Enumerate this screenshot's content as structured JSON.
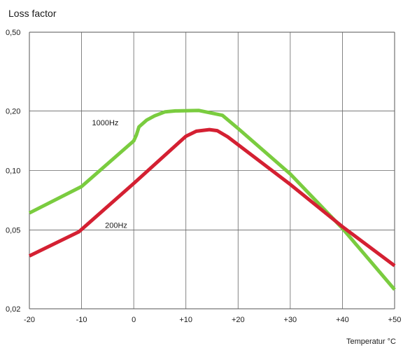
{
  "chart_data": {
    "type": "line",
    "title": "Loss factor",
    "xlabel": "Temperatur °C",
    "ylabel": "",
    "yscale": "log",
    "xlim": [
      -20,
      50
    ],
    "ylim": [
      0.02,
      0.5
    ],
    "grid": true,
    "x_ticks": [
      -20,
      -10,
      0,
      10,
      20,
      30,
      40,
      50
    ],
    "x_tick_labels": [
      "-20",
      "-10",
      "0",
      "+10",
      "+20",
      "+30",
      "+40",
      "+50"
    ],
    "y_ticks": [
      0.02,
      0.05,
      0.1,
      0.2,
      0.5
    ],
    "y_tick_labels": [
      "0,02",
      "0,05",
      "0,10",
      "0,20",
      "0,50"
    ],
    "series": [
      {
        "name": "1000Hz",
        "color": "#7acc3f",
        "label_at": {
          "x": -8,
          "y": 0.175
        },
        "points": [
          {
            "x": -20,
            "y": 0.061
          },
          {
            "x": -10,
            "y": 0.083
          },
          {
            "x": 0,
            "y": 0.141
          },
          {
            "x": 0.5,
            "y": 0.151
          },
          {
            "x": 1,
            "y": 0.166
          },
          {
            "x": 2.5,
            "y": 0.18
          },
          {
            "x": 4,
            "y": 0.189
          },
          {
            "x": 6,
            "y": 0.198
          },
          {
            "x": 8,
            "y": 0.2
          },
          {
            "x": 12.5,
            "y": 0.201
          },
          {
            "x": 17,
            "y": 0.19
          },
          {
            "x": 20,
            "y": 0.163
          },
          {
            "x": 30,
            "y": 0.096
          },
          {
            "x": 40,
            "y": 0.051
          },
          {
            "x": 50,
            "y": 0.025
          }
        ]
      },
      {
        "name": "200Hz",
        "color": "#d42032",
        "label_at": {
          "x": -5.5,
          "y": 0.053
        },
        "points": [
          {
            "x": -20,
            "y": 0.037
          },
          {
            "x": -10.5,
            "y": 0.049
          },
          {
            "x": 0,
            "y": 0.086
          },
          {
            "x": 10,
            "y": 0.149
          },
          {
            "x": 12,
            "y": 0.158
          },
          {
            "x": 14.5,
            "y": 0.161
          },
          {
            "x": 16,
            "y": 0.159
          },
          {
            "x": 18,
            "y": 0.148
          },
          {
            "x": 30,
            "y": 0.085
          },
          {
            "x": 40,
            "y": 0.052
          },
          {
            "x": 50,
            "y": 0.033
          }
        ]
      }
    ]
  }
}
